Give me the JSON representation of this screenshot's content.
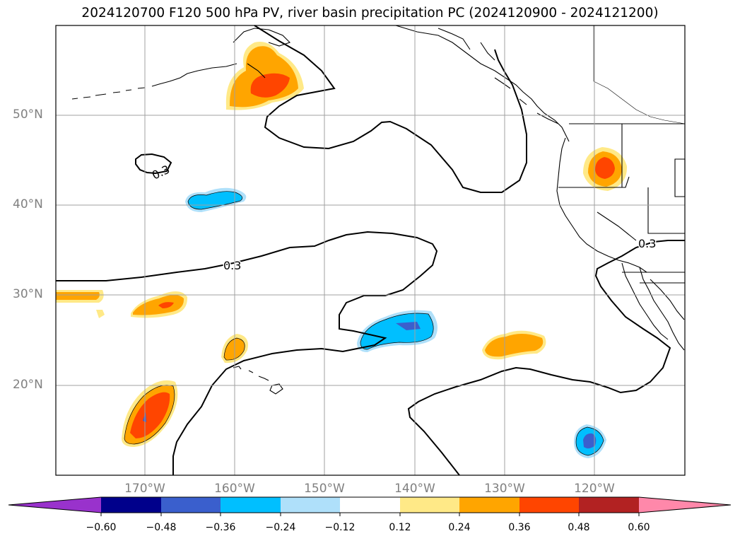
{
  "title": "2024120700 F120 500 hPa PV, river basin precipitation PC (2024120900 - 2024121200)",
  "latitude_labels": [
    "50°N",
    "40°N",
    "30°N",
    "20°N"
  ],
  "longitude_labels": [
    "170°W",
    "160°W",
    "150°W",
    "140°W",
    "130°W",
    "120°W"
  ],
  "contour_labels": [
    "0.3",
    "0.3",
    "0.3"
  ],
  "colorbar": {
    "ticks": [
      "−0.60",
      "−0.48",
      "−0.36",
      "−0.24",
      "−0.12",
      "0.12",
      "0.24",
      "0.36",
      "0.48",
      "0.60"
    ],
    "colors": [
      "#9932cc",
      "#00008b",
      "#3a5fcd",
      "#00bfff",
      "#afe0fa",
      "#ffffff",
      "#ffe987",
      "#ffa500",
      "#ff4500",
      "#b22222",
      "#ff88aa"
    ]
  }
}
